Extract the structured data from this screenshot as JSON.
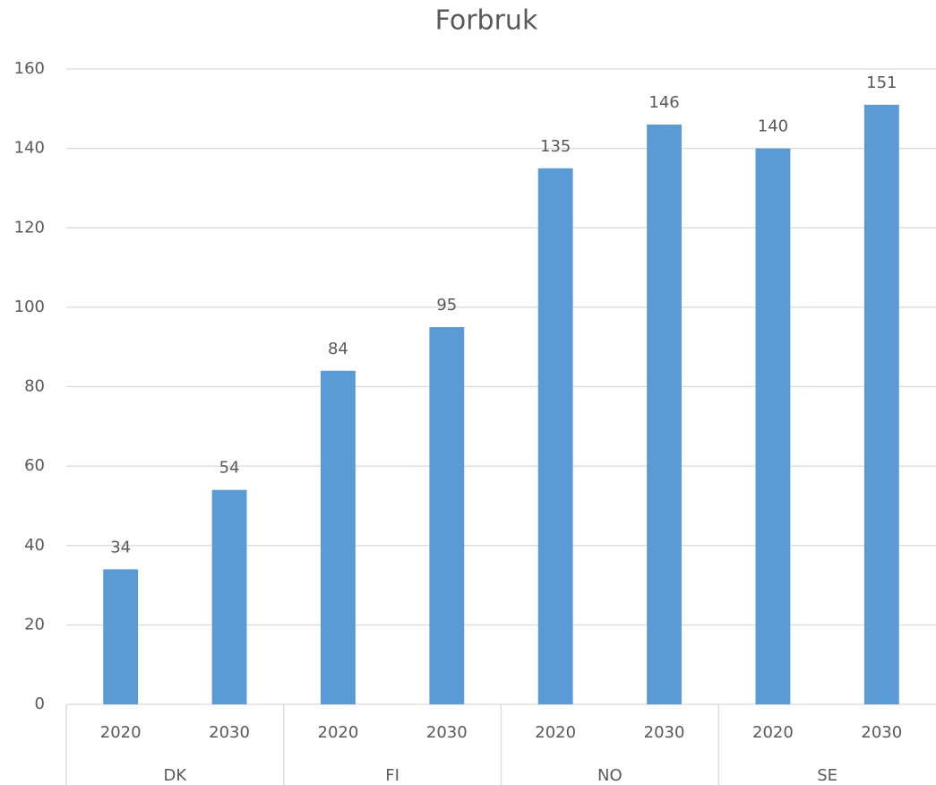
{
  "chart_data": {
    "type": "bar",
    "title": "Forbruk",
    "groups": [
      {
        "name": "DK",
        "categories": [
          "2020",
          "2030"
        ]
      },
      {
        "name": "FI",
        "categories": [
          "2020",
          "2030"
        ]
      },
      {
        "name": "NO",
        "categories": [
          "2020",
          "2030"
        ]
      },
      {
        "name": "SE",
        "categories": [
          "2020",
          "2030"
        ]
      }
    ],
    "values": [
      34,
      54,
      84,
      95,
      135,
      146,
      140,
      151
    ],
    "color": "#5b9bd5",
    "ylim": [
      0,
      160
    ],
    "yticks": [
      0,
      20,
      40,
      60,
      80,
      100,
      120,
      140,
      160
    ],
    "grid": true
  }
}
